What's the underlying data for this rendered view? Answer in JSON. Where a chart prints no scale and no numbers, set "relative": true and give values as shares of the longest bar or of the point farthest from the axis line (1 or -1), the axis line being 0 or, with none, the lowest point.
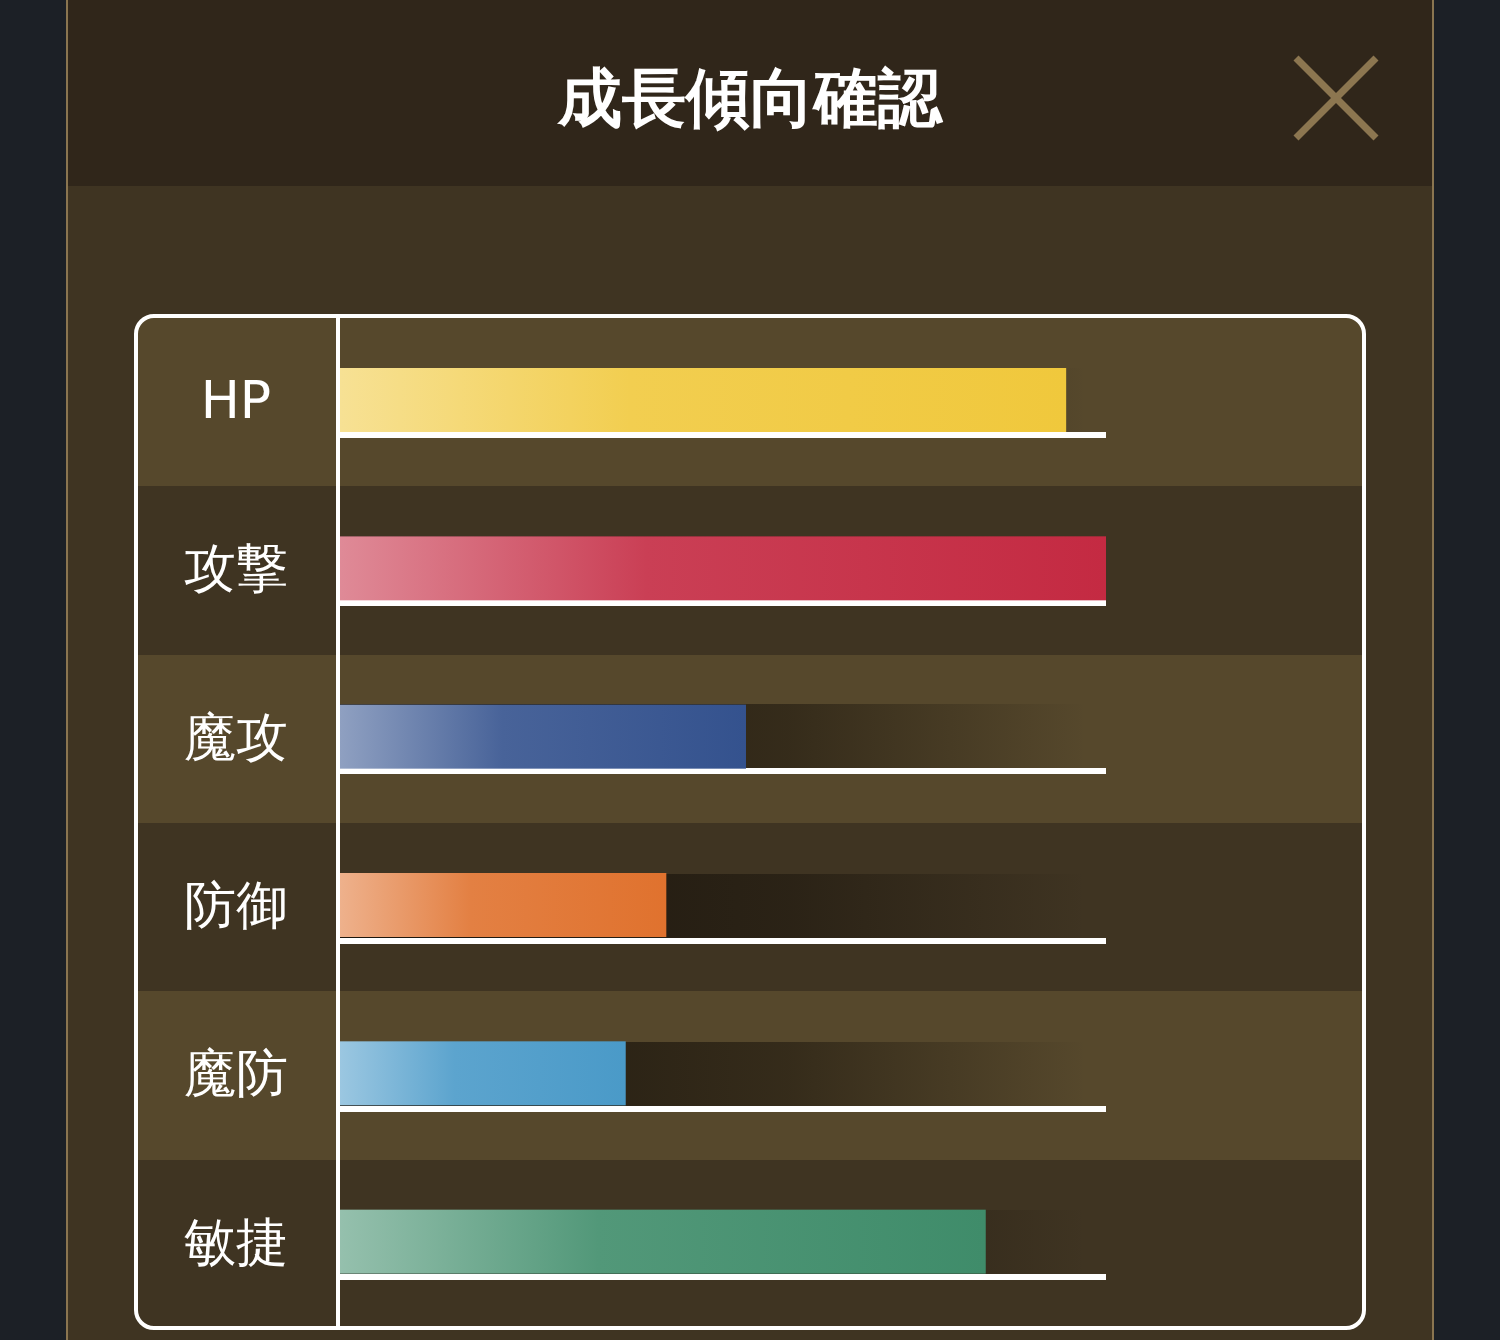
{
  "chart_data": {
    "type": "bar",
    "orientation": "horizontal",
    "relative": true,
    "title": "成長傾向確認",
    "categories": [
      "HP",
      "攻撃",
      "魔攻",
      "防御",
      "魔防",
      "敏捷"
    ],
    "values": [
      0.948,
      1,
      0.53,
      0.426,
      0.373,
      0.843
    ],
    "colors": [
      "#f0c83c",
      "#c42a42",
      "#34528e",
      "#e0722e",
      "#4a9ac8",
      "#3f8c6a"
    ]
  }
}
